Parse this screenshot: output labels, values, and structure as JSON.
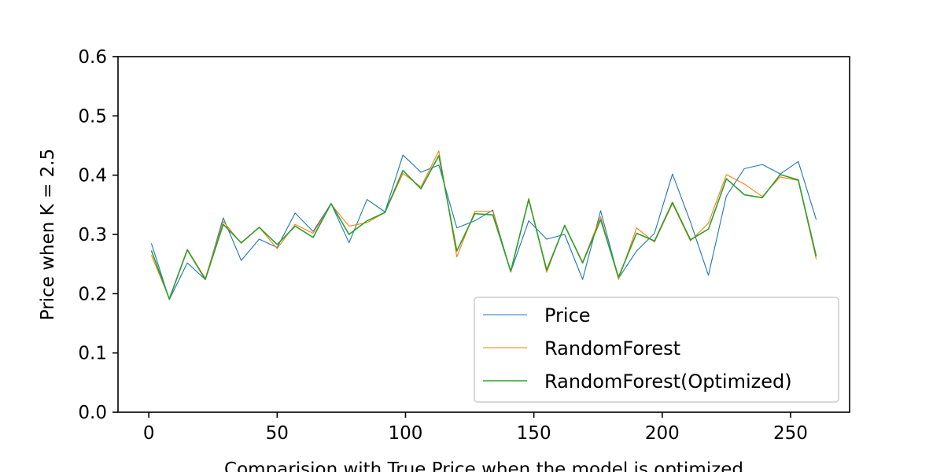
{
  "chart_data": {
    "type": "line",
    "title": "",
    "xlabel": "Comparision with True Price when the model is optimized",
    "ylabel": "Price when K = 2.5",
    "xlim": [
      -12,
      273
    ],
    "ylim": [
      0.0,
      0.6
    ],
    "xticks": [
      0,
      50,
      100,
      150,
      200,
      250
    ],
    "yticks": [
      0.0,
      0.1,
      0.2,
      0.3,
      0.4,
      0.5,
      0.6
    ],
    "xtick_labels": [
      "0",
      "50",
      "100",
      "150",
      "200",
      "250"
    ],
    "ytick_labels": [
      "0.0",
      "0.1",
      "0.2",
      "0.3",
      "0.4",
      "0.5",
      "0.6"
    ],
    "grid": false,
    "legend_position": "lower-right",
    "x": [
      1,
      8,
      15,
      22,
      29,
      36,
      43,
      50,
      57,
      64,
      71,
      78,
      85,
      92,
      99,
      106,
      113,
      120,
      127,
      134,
      141,
      148,
      155,
      162,
      169,
      176,
      183,
      190,
      197,
      204,
      211,
      218,
      225,
      232,
      239,
      246,
      253,
      260
    ],
    "series": [
      {
        "name": "Price",
        "color": "#1f77b4",
        "values": [
          0.285,
          0.19,
          0.252,
          0.224,
          0.328,
          0.256,
          0.292,
          0.278,
          0.336,
          0.305,
          0.352,
          0.286,
          0.359,
          0.338,
          0.434,
          0.405,
          0.417,
          0.311,
          0.323,
          0.341,
          0.237,
          0.323,
          0.292,
          0.3,
          0.224,
          0.34,
          0.226,
          0.272,
          0.302,
          0.402,
          0.321,
          0.231,
          0.365,
          0.411,
          0.418,
          0.402,
          0.423,
          0.325
        ]
      },
      {
        "name": "RandomForest",
        "color": "#ff7f0e",
        "values": [
          0.265,
          0.192,
          0.275,
          0.226,
          0.322,
          0.285,
          0.312,
          0.276,
          0.317,
          0.302,
          0.351,
          0.314,
          0.32,
          0.337,
          0.403,
          0.38,
          0.441,
          0.262,
          0.339,
          0.339,
          0.236,
          0.361,
          0.236,
          0.316,
          0.253,
          0.33,
          0.224,
          0.311,
          0.287,
          0.352,
          0.289,
          0.319,
          0.401,
          0.385,
          0.364,
          0.397,
          0.391,
          0.258
        ]
      },
      {
        "name": "RandomForest(Optimized)",
        "color": "#2ca02c",
        "values": [
          0.273,
          0.191,
          0.274,
          0.224,
          0.317,
          0.286,
          0.312,
          0.283,
          0.314,
          0.295,
          0.352,
          0.3,
          0.323,
          0.337,
          0.408,
          0.377,
          0.433,
          0.272,
          0.335,
          0.333,
          0.238,
          0.359,
          0.24,
          0.315,
          0.252,
          0.325,
          0.228,
          0.302,
          0.289,
          0.354,
          0.291,
          0.309,
          0.394,
          0.367,
          0.362,
          0.401,
          0.392,
          0.263
        ]
      }
    ]
  }
}
